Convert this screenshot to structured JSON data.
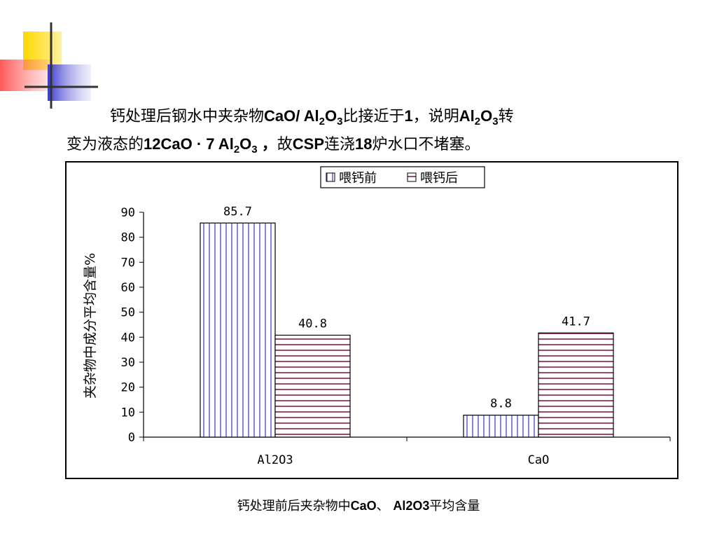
{
  "paragraph": {
    "line1": {
      "t1": "钙处理后钢水中夹杂物",
      "t2": "CaO/ Al",
      "s1": "2",
      "t3": "O",
      "s2": "3",
      "t4": "比接近于",
      "t5": "1",
      "t6": "，说明",
      "t7": "Al",
      "s3": "2",
      "t8": "O",
      "s4": "3",
      "t9": "转"
    },
    "line2": {
      "t1": "变为液态的",
      "t2": "12CaO · 7 Al",
      "s1": "2",
      "t3": "O",
      "s2": "3",
      "t4": " ，",
      "t5": "故",
      "t6": "CSP",
      "t7": "连浇",
      "t8": "18",
      "t9": "炉水口不堵塞。"
    }
  },
  "caption": {
    "t1": "钙处理前后夹杂物中",
    "t2": "CaO",
    "t3": "、 ",
    "t4": "Al2O3",
    "t5": "平均含量"
  },
  "chart_data": {
    "type": "bar",
    "categories": [
      "Al2O3",
      "CaO"
    ],
    "series": [
      {
        "name": "喂钙前",
        "values": [
          85.7,
          8.8
        ],
        "color": "#3333cc",
        "pattern": "vertical-lines"
      },
      {
        "name": "喂钙后",
        "values": [
          40.8,
          41.7
        ],
        "color": "#8b1a3a",
        "pattern": "horizontal-lines"
      }
    ],
    "value_labels": [
      [
        "85.7",
        "8.8"
      ],
      [
        "40.8",
        "41.7"
      ]
    ],
    "ylabel": "夹杂物中成分平均含量%",
    "xlabel": "",
    "ylim": [
      0,
      90
    ],
    "yticks": [
      0,
      10,
      20,
      30,
      40,
      50,
      60,
      70,
      80,
      90
    ],
    "legend_position": "top-center",
    "grid": false
  }
}
